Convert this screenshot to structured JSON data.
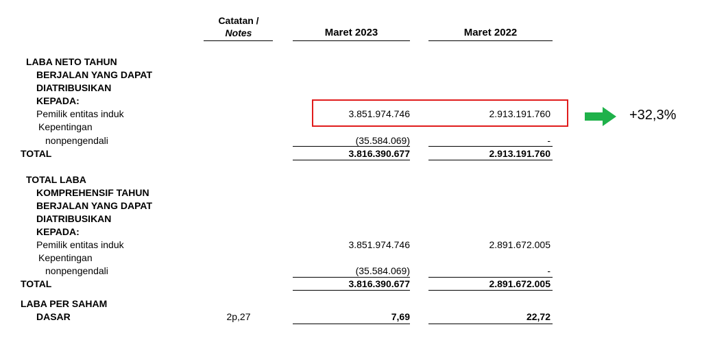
{
  "header": {
    "notes_label": [
      "Catatan /",
      "Notes"
    ],
    "columns": [
      "Maret 2023",
      "Maret 2022"
    ]
  },
  "sections": [
    {
      "title": [
        "LABA NETO TAHUN",
        "BERJALAN YANG DAPAT",
        "DIATRIBUSIKAN",
        "KEPADA:"
      ],
      "rows": [
        {
          "label": [
            "Pemilik entitas induk"
          ],
          "values": [
            "3.851.974.746",
            "2.913.191.760"
          ]
        },
        {
          "label": [
            "Kepentingan",
            "nonpengendali"
          ],
          "values": [
            "(35.584.069)",
            "-"
          ]
        }
      ],
      "total": {
        "label": "TOTAL",
        "values": [
          "3.816.390.677",
          "2.913.191.760"
        ]
      }
    },
    {
      "title": [
        "TOTAL LABA",
        "KOMPREHENSIF TAHUN",
        "BERJALAN YANG DAPAT",
        "DIATRIBUSIKAN",
        "KEPADA:"
      ],
      "rows": [
        {
          "label": [
            "Pemilik entitas induk"
          ],
          "values": [
            "3.851.974.746",
            "2.891.672.005"
          ]
        },
        {
          "label": [
            "Kepentingan",
            "nonpengendali"
          ],
          "values": [
            "(35.584.069)",
            "-"
          ]
        }
      ],
      "total": {
        "label": "TOTAL",
        "values": [
          "3.816.390.677",
          "2.891.672.005"
        ]
      }
    }
  ],
  "eps": {
    "title": [
      "LABA PER SAHAM",
      "DASAR"
    ],
    "note": "2p,27",
    "values": [
      "7,69",
      "22,72"
    ]
  },
  "annotation": {
    "change": "+32,3%"
  }
}
